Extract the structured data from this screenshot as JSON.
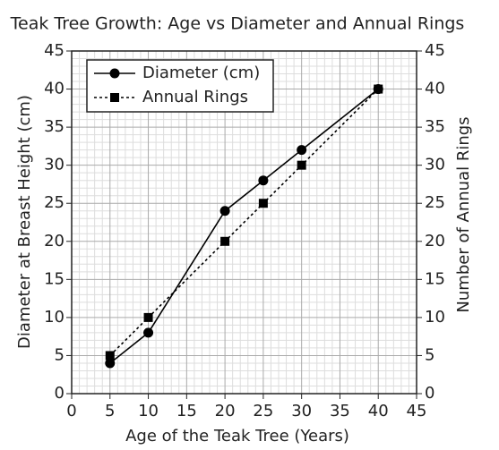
{
  "chart_data": {
    "type": "line",
    "title": "Teak Tree Growth: Age vs Diameter and Annual Rings",
    "x_label": "Age of the Teak Tree (Years)",
    "y_label": "Diameter at Breast Height (cm)",
    "y2_label": "Number of Annual Rings",
    "x": [
      5,
      10,
      20,
      25,
      30,
      40
    ],
    "series": [
      {
        "name": "Diameter (cm)",
        "color": "#000000",
        "marker": "circle",
        "dash": "solid",
        "values": [
          4,
          8,
          24,
          28,
          32,
          40
        ]
      },
      {
        "name": "Annual Rings",
        "color": "#000000",
        "marker": "square",
        "dash": "dotted",
        "axis": "y2",
        "values": [
          5,
          10,
          20,
          25,
          30,
          40
        ]
      }
    ],
    "xlim": [
      0,
      45
    ],
    "xticks": [
      0,
      5,
      10,
      15,
      20,
      25,
      30,
      35,
      40,
      45
    ],
    "ylim": [
      0,
      45
    ],
    "yticks": [
      0,
      5,
      10,
      15,
      20,
      25,
      30,
      35,
      40,
      45
    ],
    "y2lim": [
      0,
      45
    ],
    "y2ticks": [
      0,
      5,
      10,
      15,
      20,
      25,
      30,
      35,
      40,
      45
    ],
    "grid": true,
    "legend": "upper-left"
  }
}
